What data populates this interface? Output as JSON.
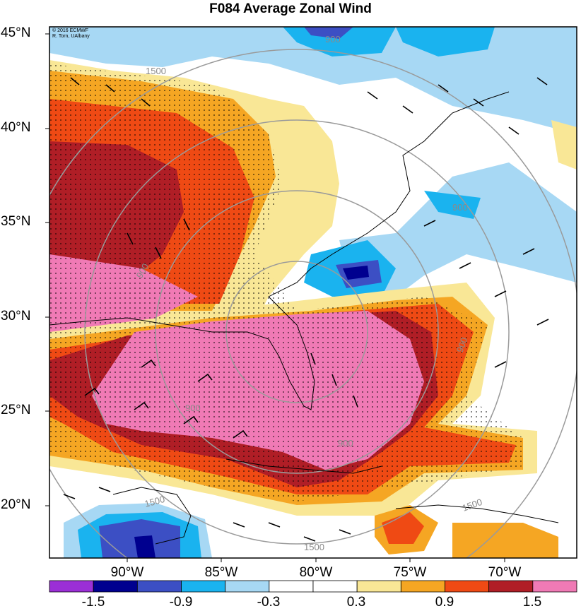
{
  "title": "F084 Average Zonal Wind",
  "credit": [
    "© 2016 ECMWF",
    "R. Torn, UAlbany"
  ],
  "lat_labels": [
    "45°N",
    "40°N",
    "35°N",
    "30°N",
    "25°N",
    "20°N"
  ],
  "lon_labels": [
    "90°W",
    "85°W",
    "80°W",
    "75°W",
    "70°W"
  ],
  "colorbar": {
    "colors": [
      "#9b2fd6",
      "#00008f",
      "#3c4fc4",
      "#1ab3ef",
      "#a7d8f4",
      "#ffffff",
      "#ffffff",
      "#f9e796",
      "#f5a623",
      "#ef4a14",
      "#b01e26",
      "#f07ab5"
    ],
    "labels": [
      "-1.5",
      "-0.9",
      "-0.3",
      "0.3",
      "0.9",
      "1.5"
    ]
  },
  "contour_labels": [
    "900",
    "900",
    "900",
    "900",
    "900",
    "1500",
    "1500",
    "1500",
    "900",
    "1500"
  ]
}
